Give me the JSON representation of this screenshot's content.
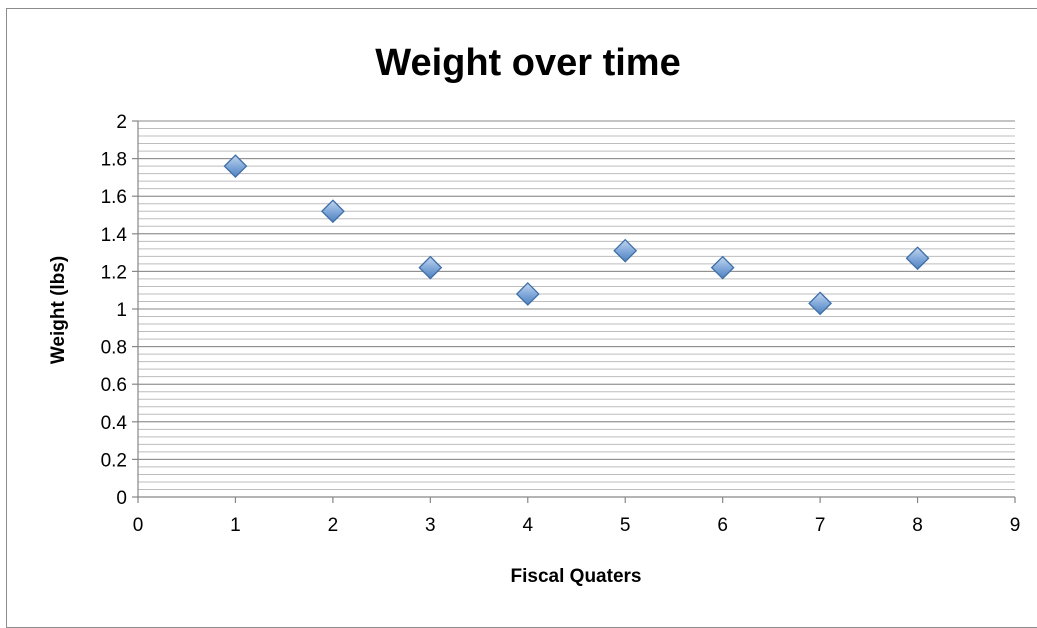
{
  "chart_data": {
    "type": "scatter",
    "title": "Weight over time",
    "xlabel": "Fiscal Quaters",
    "ylabel": "Weight (lbs)",
    "xlim": [
      0,
      9
    ],
    "ylim": [
      0,
      2
    ],
    "xticks": [
      0,
      1,
      2,
      3,
      4,
      5,
      6,
      7,
      8,
      9
    ],
    "yticks": [
      0,
      0.2,
      0.4,
      0.6,
      0.8,
      1,
      1.2,
      1.4,
      1.6,
      1.8,
      2
    ],
    "xtick_labels": [
      "0",
      "1",
      "2",
      "3",
      "4",
      "5",
      "6",
      "7",
      "8",
      "9"
    ],
    "ytick_labels": [
      "0",
      "0.2",
      "0.4",
      "0.6",
      "0.8",
      "1",
      "1.2",
      "1.4",
      "1.6",
      "1.8",
      "2"
    ],
    "minor_grid_step": 0.04,
    "grid": true,
    "legend": "none",
    "marker": "diamond",
    "marker_color": "#4f81bd",
    "series": [
      {
        "x": [
          1,
          2,
          3,
          4,
          5,
          6,
          7,
          8
        ],
        "y": [
          1.76,
          1.52,
          1.22,
          1.08,
          1.31,
          1.22,
          1.03,
          1.27
        ]
      }
    ]
  }
}
